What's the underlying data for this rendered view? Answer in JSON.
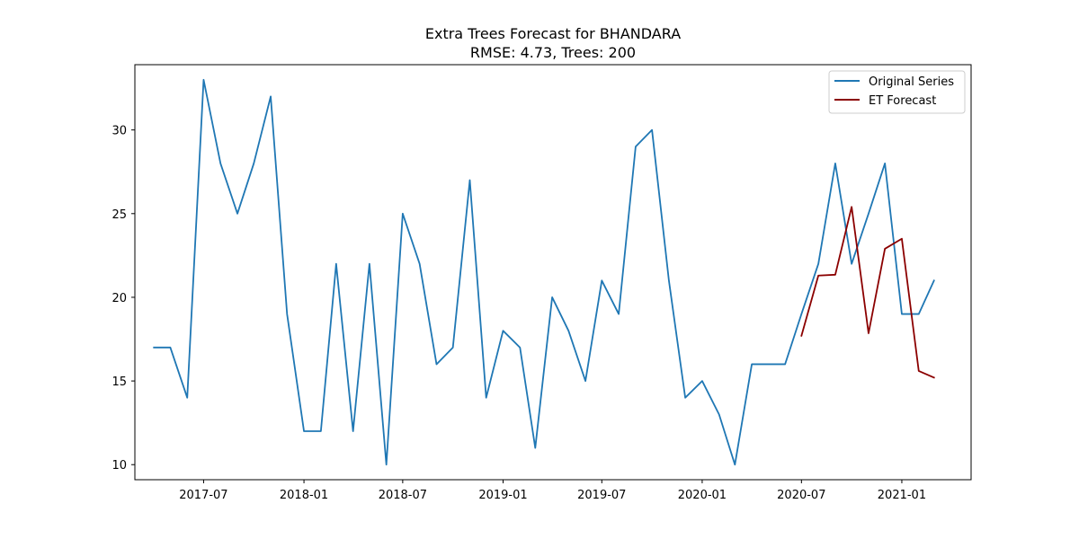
{
  "colors": {
    "original": "#1f77b4",
    "forecast": "#8b0000",
    "axis": "#000000",
    "legend_border": "#cccccc"
  },
  "chart_data": {
    "type": "line",
    "title": "Extra Trees Forecast for BHANDARA",
    "subtitle": "RMSE: 4.73, Trees: 200",
    "xlabel": "",
    "ylabel": "",
    "xlim": [
      "2017-02-25",
      "2021-05-08"
    ],
    "ylim": [
      9.1,
      33.9
    ],
    "grid": false,
    "legend_placement": "top-right",
    "x_ticks": [
      "2017-07",
      "2018-01",
      "2018-07",
      "2019-01",
      "2019-07",
      "2020-01",
      "2020-07",
      "2021-01"
    ],
    "y_ticks": [
      10,
      15,
      20,
      25,
      30
    ],
    "series": [
      {
        "name": "Original Series",
        "color_key": "original",
        "x": [
          "2017-04",
          "2017-05",
          "2017-06",
          "2017-07",
          "2017-08",
          "2017-09",
          "2017-10",
          "2017-11",
          "2017-12",
          "2018-01",
          "2018-02",
          "2018-03",
          "2018-04",
          "2018-05",
          "2018-06",
          "2018-07",
          "2018-08",
          "2018-09",
          "2018-10",
          "2018-11",
          "2018-12",
          "2019-01",
          "2019-02",
          "2019-03",
          "2019-04",
          "2019-05",
          "2019-06",
          "2019-07",
          "2019-08",
          "2019-09",
          "2019-10",
          "2019-11",
          "2019-12",
          "2020-01",
          "2020-02",
          "2020-03",
          "2020-04",
          "2020-05",
          "2020-06",
          "2020-07",
          "2020-08",
          "2020-09",
          "2020-10",
          "2020-11",
          "2020-12",
          "2021-01",
          "2021-02",
          "2021-03"
        ],
        "values": [
          17,
          17,
          14,
          33,
          28,
          25,
          28,
          32,
          19,
          12,
          12,
          22,
          12,
          22,
          10,
          25,
          22,
          16,
          17,
          27,
          14,
          18,
          17,
          11,
          20,
          18,
          15,
          21,
          19,
          29,
          30,
          21,
          14,
          15,
          13,
          10,
          16,
          16,
          16,
          19,
          22,
          28,
          22,
          25,
          28,
          19,
          19,
          21
        ]
      },
      {
        "name": "ET Forecast",
        "color_key": "forecast",
        "x": [
          "2020-07",
          "2020-08",
          "2020-09",
          "2020-10",
          "2020-11",
          "2020-12",
          "2021-01",
          "2021-02",
          "2021-03"
        ],
        "values": [
          17.7,
          21.3,
          21.35,
          25.4,
          17.85,
          22.9,
          23.5,
          15.6,
          15.2
        ]
      }
    ]
  }
}
